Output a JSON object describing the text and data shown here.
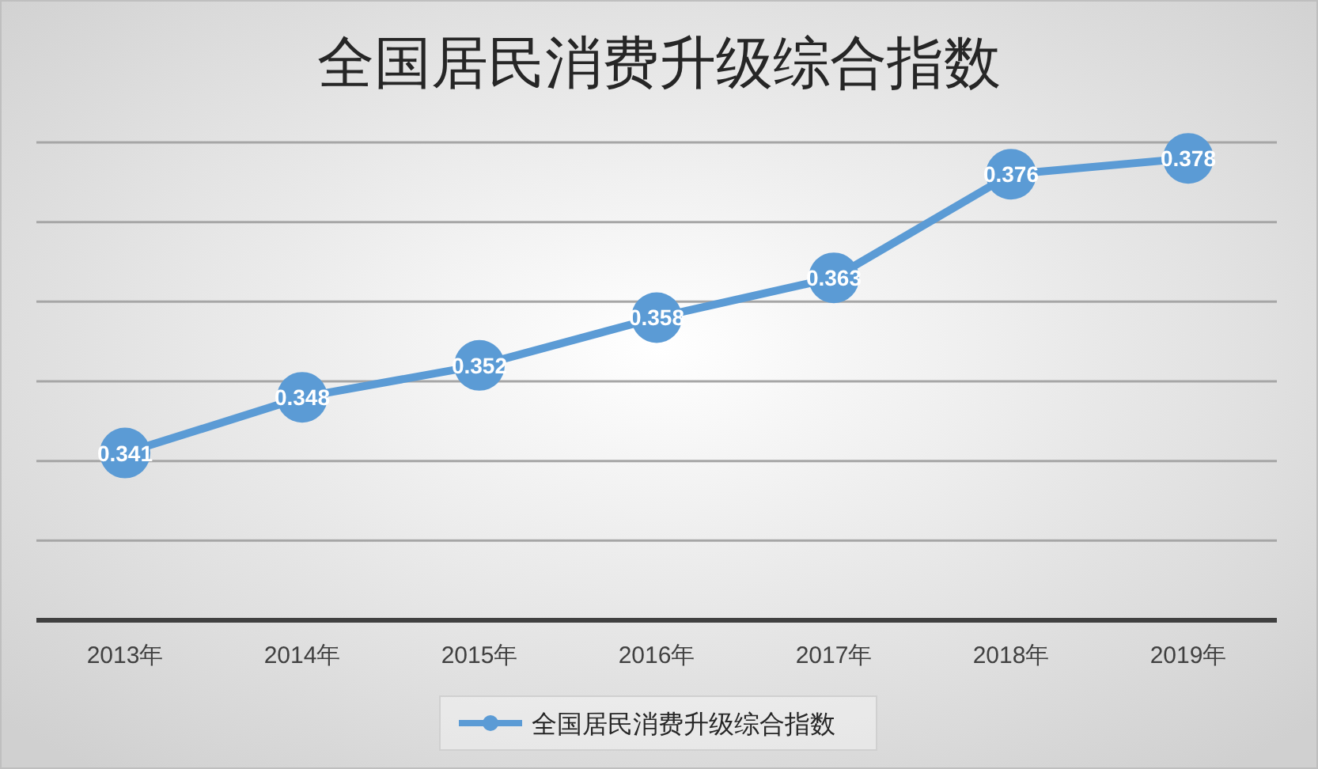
{
  "chart_data": {
    "type": "line",
    "title": "全国居民消费升级综合指数",
    "categories": [
      "2013年",
      "2014年",
      "2015年",
      "2016年",
      "2017年",
      "2018年",
      "2019年"
    ],
    "series": [
      {
        "name": "全国居民消费升级综合指数",
        "color": "#5b9bd5",
        "values": [
          0.341,
          0.348,
          0.352,
          0.358,
          0.363,
          0.376,
          0.378
        ]
      }
    ],
    "ylim": [
      0.32,
      0.38
    ],
    "yticks": [
      {
        "value": 0.32,
        "label": null
      },
      {
        "value": 0.33,
        "label": null
      },
      {
        "value": 0.34,
        "label": null
      },
      {
        "value": 0.35,
        "label": null
      },
      {
        "value": 0.36,
        "label": null
      },
      {
        "value": 0.37,
        "label": null
      },
      {
        "value": 0.38,
        "label": null
      }
    ],
    "tick_labels": "x",
    "grid": "y",
    "legend": "bottom",
    "marker": "circle",
    "line_style": "solid",
    "data_labels": true
  }
}
